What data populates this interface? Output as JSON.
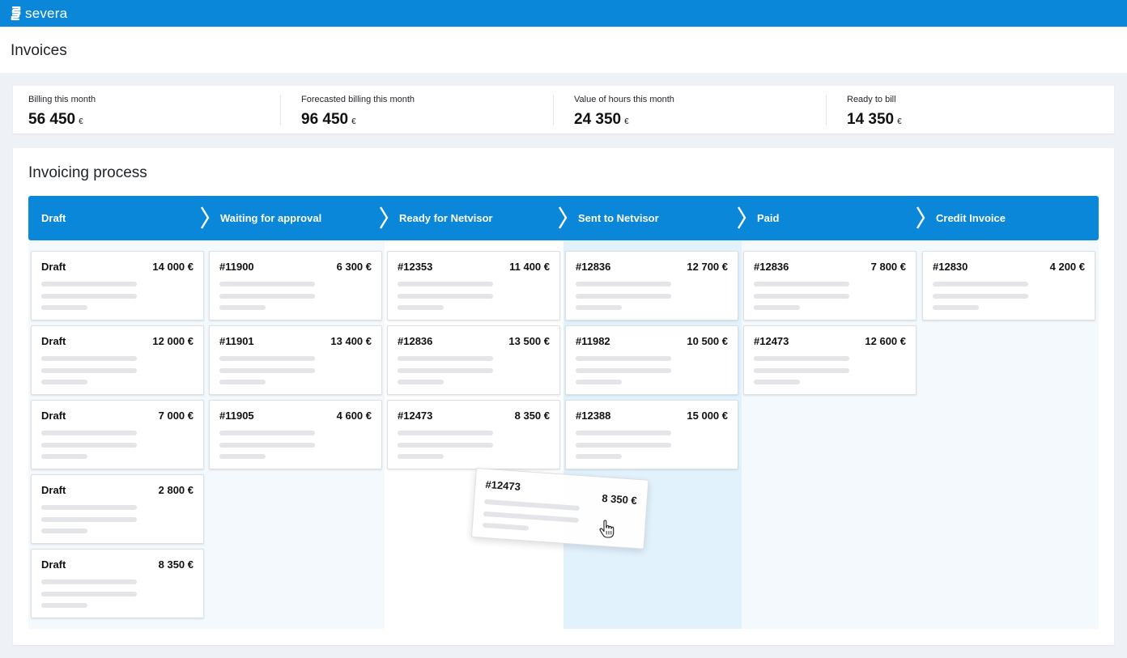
{
  "app": {
    "brand": "severa"
  },
  "page": {
    "title": "Invoices"
  },
  "stats": [
    {
      "label": "Billing this month",
      "value": "56 450",
      "unit": "€"
    },
    {
      "label": "Forecasted billing this month",
      "value": "96 450",
      "unit": "€"
    },
    {
      "label": "Value of hours this month",
      "value": "24 350",
      "unit": "€"
    },
    {
      "label": "Ready to bill",
      "value": "14 350",
      "unit": "€"
    }
  ],
  "process": {
    "title": "Invoicing process",
    "stages": [
      {
        "label": "Draft"
      },
      {
        "label": "Waiting for approval"
      },
      {
        "label": "Ready for Netvisor"
      },
      {
        "label": "Sent to Netvisor"
      },
      {
        "label": "Paid"
      },
      {
        "label": "Credit Invoice"
      }
    ],
    "columns": [
      {
        "cards": [
          {
            "id": "Draft",
            "amount": "14 000 €"
          },
          {
            "id": "Draft",
            "amount": "12 000 €"
          },
          {
            "id": "Draft",
            "amount": "7 000 €"
          },
          {
            "id": "Draft",
            "amount": "2 800 €"
          },
          {
            "id": "Draft",
            "amount": "8 350 €"
          }
        ]
      },
      {
        "cards": [
          {
            "id": "#11900",
            "amount": "6 300 €"
          },
          {
            "id": "#11901",
            "amount": "13 400 €"
          },
          {
            "id": "#11905",
            "amount": "4 600 €"
          }
        ]
      },
      {
        "cards": [
          {
            "id": "#12353",
            "amount": "11 400 €"
          },
          {
            "id": "#12836",
            "amount": "13 500 €"
          },
          {
            "id": "#12473",
            "amount": "8 350 €"
          }
        ]
      },
      {
        "cards": [
          {
            "id": "#12836",
            "amount": "12 700 €"
          },
          {
            "id": "#11982",
            "amount": "10 500 €"
          },
          {
            "id": "#12388",
            "amount": "15 000 €"
          }
        ]
      },
      {
        "cards": [
          {
            "id": "#12836",
            "amount": "7 800 €"
          },
          {
            "id": "#12473",
            "amount": "12 600 €"
          }
        ]
      },
      {
        "cards": [
          {
            "id": "#12830",
            "amount": "4 200 €"
          }
        ]
      }
    ],
    "dragging": {
      "id": "#12473",
      "amount": "8 350 €"
    }
  },
  "colors": {
    "brand": "#0a87d8",
    "page_bg": "#eef2f7",
    "column_alt": "#f4f9fe",
    "drop_target": "#e2f2fd"
  }
}
